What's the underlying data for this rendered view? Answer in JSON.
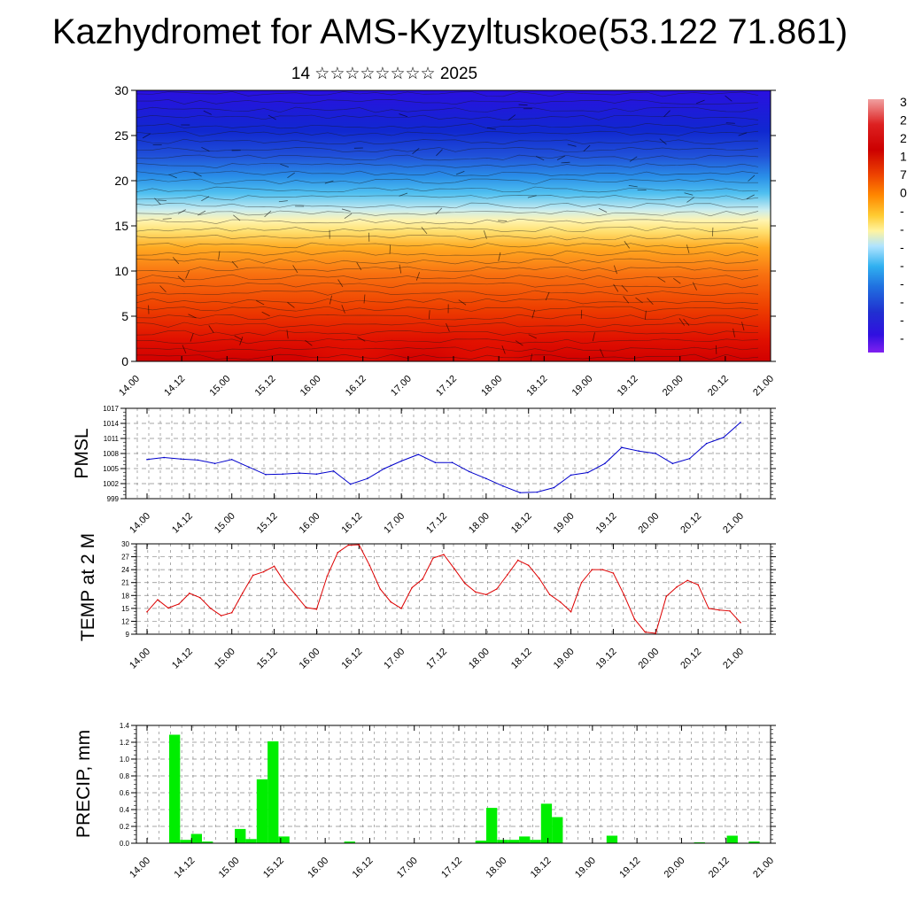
{
  "title": "Kazhydromet for AMS-Kyzyltuskoe(53.122 71.861)",
  "subtitle": "14 ☆☆☆☆☆☆☆☆ 2025",
  "colors": {
    "pmsl_line": "#0000cc",
    "temp_line": "#dd0000",
    "precip_bar": "#00ee00",
    "grid": "#888888"
  },
  "chart_data": [
    {
      "type": "heatmap",
      "name": "cross-section",
      "ylim": [
        0,
        30
      ],
      "y_ticks": [
        "0",
        "5",
        "10",
        "15",
        "20",
        "25",
        "30"
      ],
      "x_ticks": [
        "14.00",
        "14.12",
        "15.00",
        "15.12",
        "16.00",
        "16.12",
        "17.00",
        "17.12",
        "18.00",
        "18.12",
        "19.00",
        "19.12",
        "20.00",
        "20.12",
        "21.00"
      ],
      "colorbar_labels": [
        "3",
        "2",
        "2",
        "1",
        "7",
        "0",
        "-",
        "-",
        "-",
        "-",
        "-",
        "-",
        "-",
        "-"
      ],
      "colorbar_colors": [
        "#f0a0a0",
        "#dd2020",
        "#cc0000",
        "#ee4400",
        "#ff7700",
        "#ffaa22",
        "#ffe070",
        "#fff8b0",
        "#a0e0ff",
        "#30b0f0",
        "#2070e0",
        "#2030d0",
        "#3010e0",
        "#8020f0"
      ]
    },
    {
      "type": "line",
      "ylabel": "PMSL",
      "ylim": [
        999,
        1017
      ],
      "y_ticks": [
        999,
        1002,
        1005,
        1008,
        1011,
        1014,
        1017
      ],
      "x_ticks": [
        "14.00",
        "14.12",
        "15.00",
        "15.12",
        "16.00",
        "16.12",
        "17.00",
        "17.12",
        "18.00",
        "18.12",
        "19.00",
        "19.12",
        "20.00",
        "20.12",
        "21.00"
      ],
      "series": [
        {
          "values": [
            1006.8,
            1007.2,
            1006.9,
            1006.7,
            1006.0,
            1006.8,
            1005.3,
            1003.8,
            1003.9,
            1004.1,
            1003.9,
            1004.5,
            1001.9,
            1003.0,
            1005.0,
            1006.5,
            1007.8,
            1006.2,
            1006.2,
            1004.4,
            1003.0,
            1001.5,
            1000.2,
            1000.3,
            1001.2,
            1003.7,
            1004.2,
            1006.0,
            1009.2,
            1008.5,
            1008.0,
            1006.0,
            1007.0,
            1010.0,
            1011.2,
            1014.2
          ]
        }
      ]
    },
    {
      "type": "line",
      "ylabel": "TEMP at 2 M",
      "ylim": [
        9,
        30
      ],
      "y_ticks": [
        9,
        12,
        15,
        18,
        21,
        24,
        27,
        30
      ],
      "x_ticks": [
        "14.00",
        "14.12",
        "15.00",
        "15.12",
        "16.00",
        "16.12",
        "17.00",
        "17.12",
        "18.00",
        "18.12",
        "19.00",
        "19.12",
        "20.00",
        "20.12",
        "21.00"
      ],
      "series": [
        {
          "values": [
            14.2,
            17.0,
            15.1,
            16.0,
            18.5,
            17.5,
            15.0,
            13.3,
            14.0,
            18.5,
            22.7,
            23.5,
            24.8,
            21.0,
            18.2,
            15.2,
            14.8,
            22.5,
            28.0,
            29.7,
            29.8,
            25.0,
            19.5,
            16.5,
            15.0,
            19.8,
            21.8,
            26.7,
            27.5,
            24.2,
            20.8,
            18.8,
            18.2,
            19.5,
            22.8,
            26.2,
            25.0,
            22.0,
            18.2,
            16.5,
            14.2,
            21.0,
            24.0,
            24.0,
            23.2,
            18.2,
            12.5,
            9.5,
            9.2,
            17.8,
            20.0,
            21.5,
            20.5,
            15.0,
            14.6,
            14.4,
            11.7
          ]
        }
      ]
    },
    {
      "type": "bar",
      "ylabel": "PRECIP, mm",
      "ylim": [
        0,
        1.4
      ],
      "y_ticks": [
        "0.0",
        "0.2",
        "0.4",
        "0.6",
        "0.8",
        "1.0",
        "1.2",
        "1.4"
      ],
      "x_ticks": [
        "14.00",
        "14.12",
        "15.00",
        "15.12",
        "16.00",
        "16.12",
        "17.00",
        "17.12",
        "18.00",
        "18.12",
        "19.00",
        "19.12",
        "20.00",
        "20.12",
        "21.00"
      ],
      "series": [
        {
          "values": [
            0,
            0,
            0,
            1.29,
            0.04,
            0.11,
            0.02,
            0,
            0,
            0.17,
            0.05,
            0.76,
            1.21,
            0.08,
            0,
            0,
            0,
            0,
            0,
            0.02,
            0,
            0,
            0,
            0,
            0,
            0,
            0,
            0,
            0,
            0,
            0,
            0.03,
            0.42,
            0.04,
            0.04,
            0.08,
            0.04,
            0.47,
            0.31,
            0,
            0,
            0,
            0,
            0.09,
            0,
            0,
            0,
            0,
            0,
            0,
            0,
            0.01,
            0,
            0,
            0.09,
            0,
            0.02,
            0
          ]
        }
      ]
    }
  ]
}
